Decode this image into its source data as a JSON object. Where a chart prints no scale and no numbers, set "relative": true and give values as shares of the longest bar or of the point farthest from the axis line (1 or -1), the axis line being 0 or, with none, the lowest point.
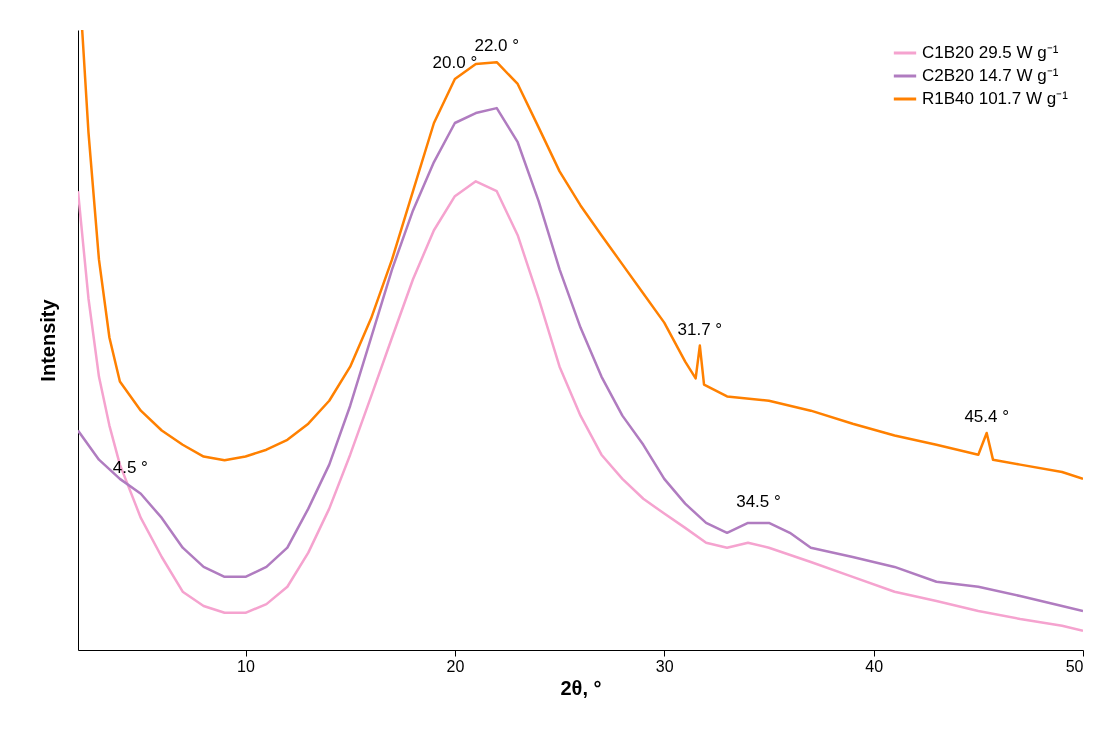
{
  "chart_data": {
    "type": "line",
    "relative": true,
    "xlabel": "2θ, °",
    "ylabel": "Intensity",
    "xlim": [
      2,
      50
    ],
    "xticks": [
      10,
      20,
      30,
      40,
      50
    ],
    "grid": false,
    "legend": "top right",
    "tick_labels": "x",
    "series": [
      {
        "name": "C1B20  29.5 W g⁻¹",
        "color": "#f5a3cf",
        "x": [
          2,
          2.5,
          3,
          3.5,
          4,
          5,
          6,
          7,
          8,
          9,
          10,
          11,
          12,
          13,
          14,
          15,
          16,
          17,
          18,
          19,
          20,
          21,
          22,
          23,
          24,
          25,
          26,
          27,
          28,
          29,
          30,
          31,
          32,
          33,
          34,
          35,
          37,
          39,
          41,
          43,
          45,
          47,
          49,
          50
        ],
        "values": [
          0.74,
          0.567,
          0.441,
          0.362,
          0.299,
          0.213,
          0.15,
          0.094,
          0.071,
          0.06,
          0.06,
          0.074,
          0.102,
          0.157,
          0.228,
          0.315,
          0.409,
          0.504,
          0.598,
          0.677,
          0.732,
          0.756,
          0.74,
          0.669,
          0.567,
          0.457,
          0.378,
          0.315,
          0.276,
          0.244,
          0.22,
          0.197,
          0.173,
          0.165,
          0.173,
          0.165,
          0.142,
          0.118,
          0.094,
          0.079,
          0.063,
          0.05,
          0.039,
          0.031
        ]
      },
      {
        "name": "C2B20  14.7 W g⁻¹",
        "color": "#b07cc0",
        "x": [
          2,
          3,
          4,
          5,
          6,
          7,
          8,
          9,
          10,
          11,
          12,
          13,
          14,
          15,
          16,
          17,
          18,
          19,
          20,
          21,
          22,
          23,
          24,
          25,
          26,
          27,
          28,
          29,
          30,
          31,
          32,
          33,
          34,
          35,
          36,
          37,
          39,
          41,
          43,
          45,
          47,
          49,
          50
        ],
        "values": [
          0.354,
          0.307,
          0.276,
          0.252,
          0.213,
          0.165,
          0.134,
          0.118,
          0.118,
          0.134,
          0.165,
          0.228,
          0.299,
          0.394,
          0.504,
          0.614,
          0.709,
          0.787,
          0.85,
          0.866,
          0.874,
          0.819,
          0.724,
          0.614,
          0.52,
          0.441,
          0.378,
          0.331,
          0.276,
          0.236,
          0.205,
          0.189,
          0.205,
          0.205,
          0.189,
          0.165,
          0.15,
          0.134,
          0.11,
          0.102,
          0.087,
          0.071,
          0.063
        ]
      },
      {
        "name": "R1B40  101.7 W g⁻¹",
        "color": "#ff8000",
        "x": [
          2.2,
          2.5,
          3,
          3.5,
          4,
          5,
          6,
          7,
          8,
          9,
          10,
          11,
          12,
          13,
          14,
          15,
          16,
          17,
          18,
          19,
          20,
          21,
          22,
          23,
          24,
          25,
          26,
          27,
          28,
          29,
          30,
          31,
          31.5,
          31.7,
          31.9,
          33,
          35,
          37,
          39,
          41,
          43,
          45,
          45.4,
          45.7,
          47,
          49,
          50
        ],
        "values": [
          1,
          0.835,
          0.63,
          0.504,
          0.433,
          0.386,
          0.354,
          0.331,
          0.312,
          0.306,
          0.312,
          0.323,
          0.339,
          0.365,
          0.402,
          0.457,
          0.535,
          0.63,
          0.74,
          0.85,
          0.921,
          0.945,
          0.948,
          0.913,
          0.843,
          0.772,
          0.717,
          0.669,
          0.622,
          0.575,
          0.528,
          0.465,
          0.438,
          0.491,
          0.428,
          0.409,
          0.402,
          0.386,
          0.365,
          0.346,
          0.331,
          0.315,
          0.35,
          0.307,
          0.299,
          0.287,
          0.276
        ]
      }
    ],
    "annotations": [
      {
        "text": "20.0 °",
        "x": 20,
        "y": 0.921
      },
      {
        "text": "22.0 °",
        "x": 22,
        "y": 0.948
      },
      {
        "text": "31.7 °",
        "x": 31.7,
        "y": 0.491
      },
      {
        "text": "45.4 °",
        "x": 45.4,
        "y": 0.35
      },
      {
        "text": "34.5 °",
        "x": 34.5,
        "y": 0.213
      },
      {
        "text": "4.5 °",
        "x": 4.5,
        "y": 0.268
      }
    ]
  }
}
